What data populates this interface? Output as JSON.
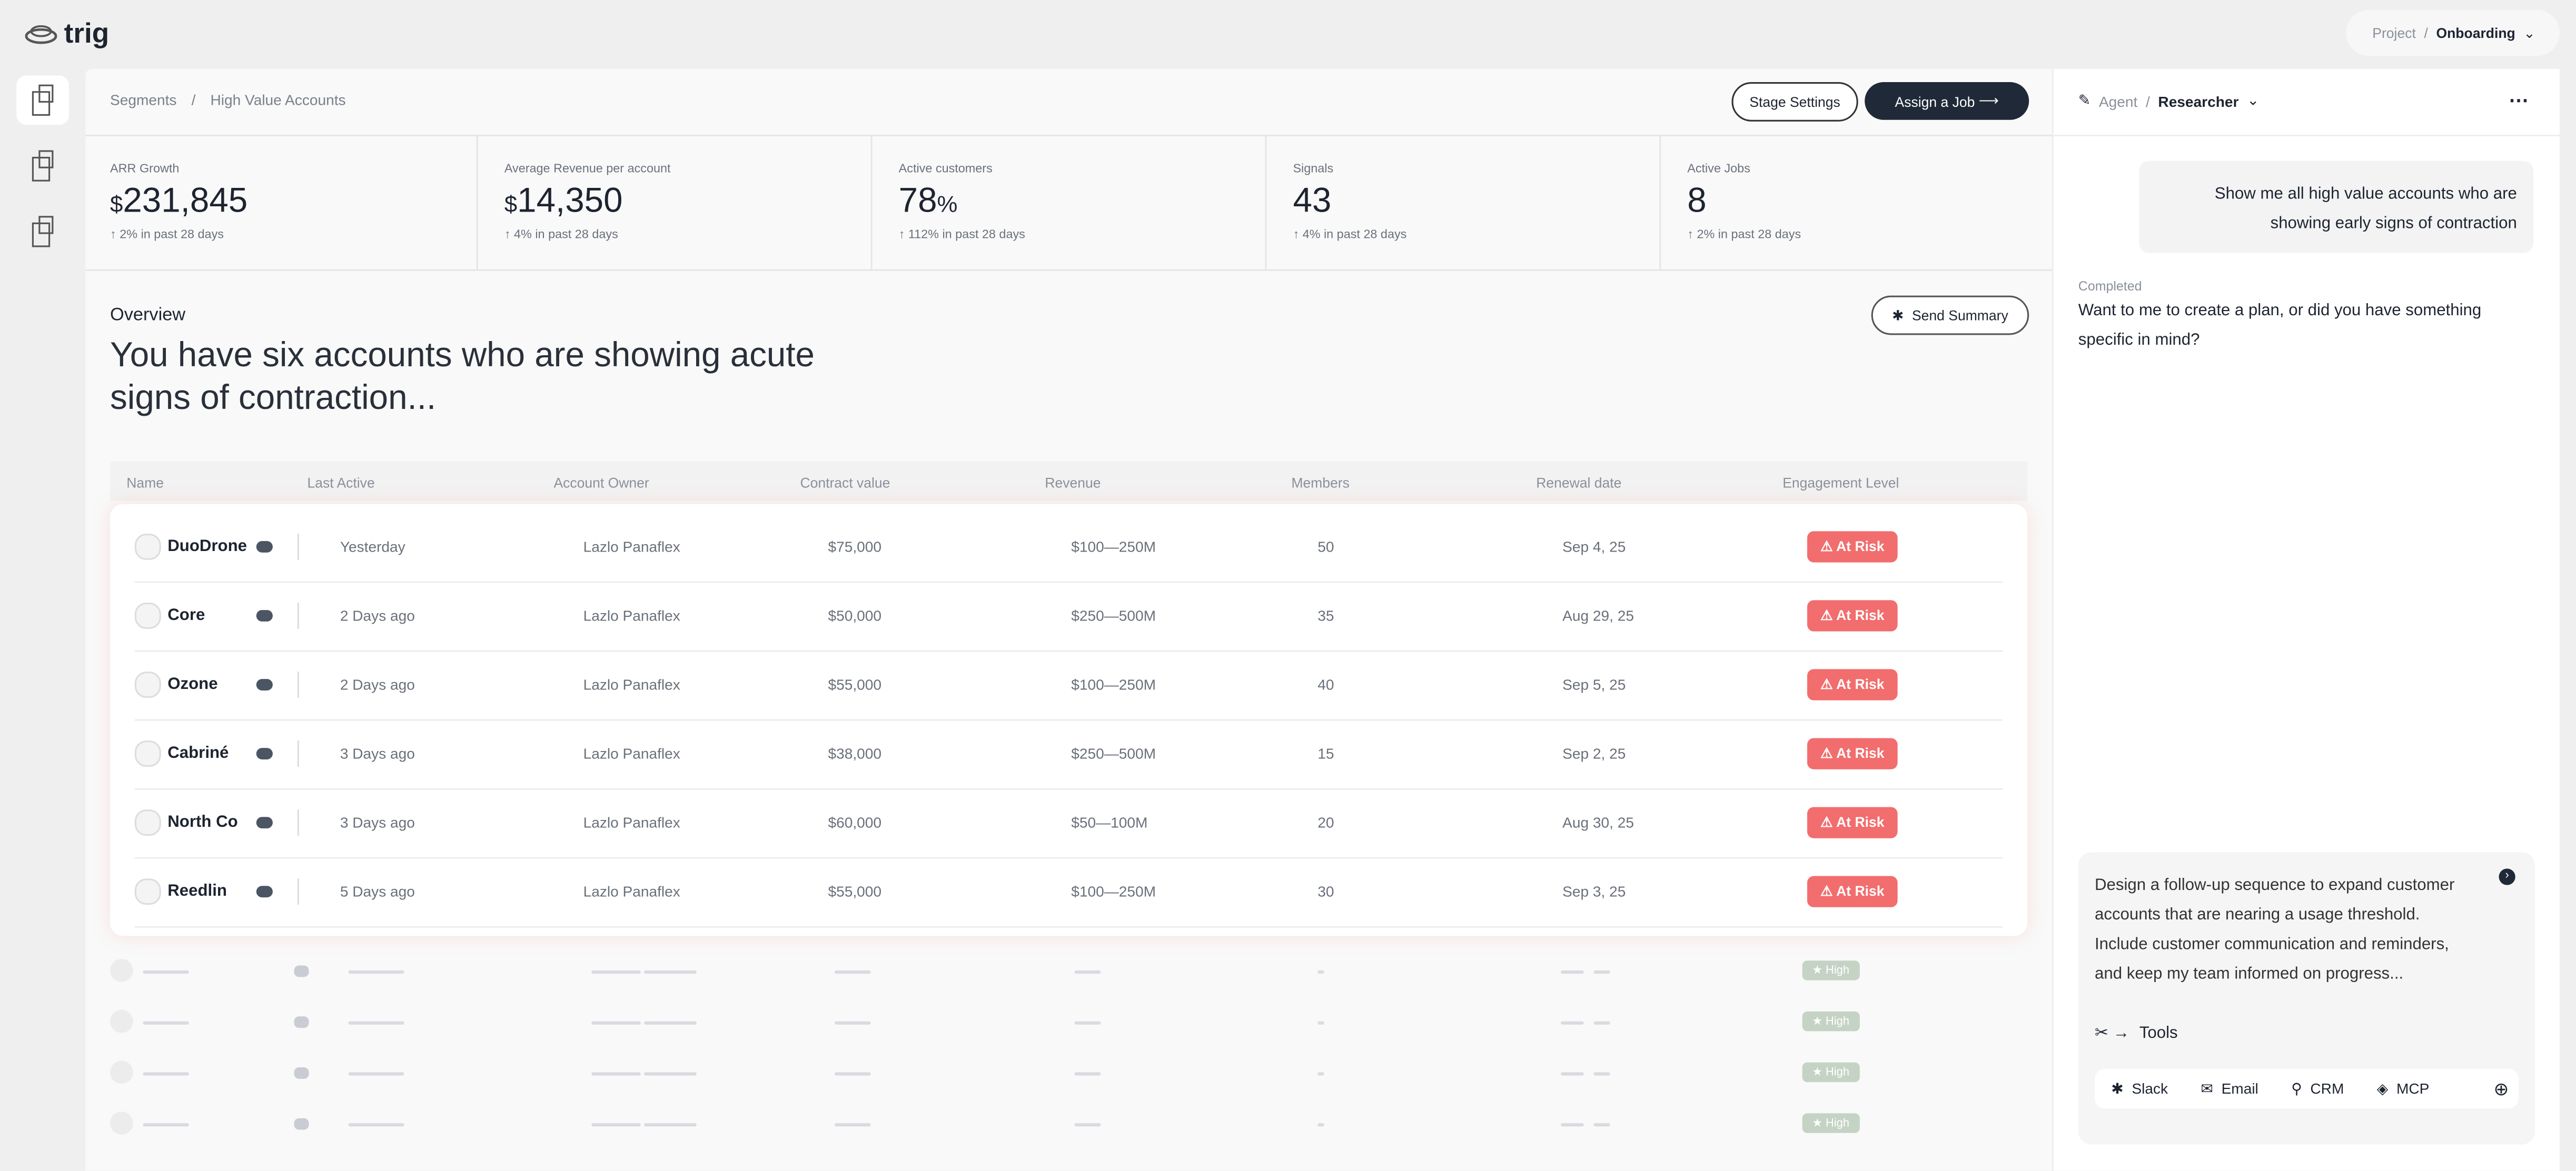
{
  "header": {
    "logo": "trig",
    "project_label": "Project",
    "project_separator": "/",
    "project_name": "Onboarding"
  },
  "breadcrumb": [
    "Segments",
    "/",
    "High Value Accounts"
  ],
  "actions": [
    "Stage Settings",
    "Assign a Job"
  ],
  "metrics": [
    {
      "label": "ARR Growth",
      "prefix": "$",
      "value": "231,845",
      "change": "↑ 2% in past 28 days"
    },
    {
      "label": "Average Revenue per account",
      "prefix": "$",
      "value": "14,350",
      "change": "↑ 4% in past 28 days"
    },
    {
      "label": "Active customers",
      "value": "78",
      "suffix": "%",
      "change": "↑ 112% in past 28 days"
    },
    {
      "label": "Signals",
      "value": "43",
      "change": "↑ 4% in past 28 days"
    },
    {
      "label": "Active Jobs",
      "value": "8",
      "change": "↑ 2% in past 28 days"
    }
  ],
  "overview": {
    "label": "Overview",
    "headline": "You have six accounts who are showing acute signs of contraction...",
    "button": "Send Summary"
  },
  "table": {
    "columns": [
      "Name",
      "Last Active",
      "Account Owner",
      "Contract value",
      "Revenue",
      "Members",
      "Renewal date",
      "Engagement Level"
    ],
    "rows": [
      [
        "DuoDrone",
        "Yesterday",
        "Lazlo Panaflex",
        "$75,000",
        "$100—250M",
        "50",
        "Sep 4, 25",
        "At Risk"
      ],
      [
        "Core",
        "2 Days ago",
        "Lazlo Panaflex",
        "$50,000",
        "$250—500M",
        "35",
        "Aug 29, 25",
        "At Risk"
      ],
      [
        "Ozone",
        "2 Days ago",
        "Lazlo Panaflex",
        "$55,000",
        "$100—250M",
        "40",
        "Sep 5, 25",
        "At Risk"
      ],
      [
        "Cabriné",
        "3 Days ago",
        "Lazlo Panaflex",
        "$38,000",
        "$250—500M",
        "15",
        "Sep 2, 25",
        "At Risk"
      ],
      [
        "North Co",
        "3 Days ago",
        "Lazlo Panaflex",
        "$60,000",
        "$50—100M",
        "20",
        "Aug 30, 25",
        "At Risk"
      ],
      [
        "Reedlin",
        "5 Days ago",
        "Lazlo Panaflex",
        "$55,000",
        "$100—250M",
        "30",
        "Sep 3, 25",
        "At Risk"
      ]
    ]
  },
  "placeholder_badges": [
    "High",
    "High",
    "High",
    "High"
  ],
  "agent": {
    "label": "Agent",
    "separator": "/",
    "name": "Researcher",
    "user_message": "Show me all high value accounts who are showing early signs of contraction",
    "status": "Completed",
    "reply": "Want to me to create a plan, or did you have something specific in mind?",
    "prompt": "Design a follow-up sequence to expand customer accounts that are nearing a usage threshold. Include customer communication and reminders, and keep my team informed on progress...",
    "tools_label": "Tools",
    "tools": [
      "Slack",
      "Email",
      "CRM",
      "MCP"
    ]
  }
}
